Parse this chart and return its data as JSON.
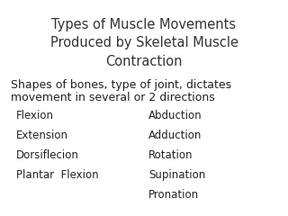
{
  "title": "Types of Muscle Movements\nProduced by Skeletal Muscle\nContraction",
  "subtitle_line1": "Shapes of bones, type of joint, dictates",
  "subtitle_line2": "movement in several or 2 directions",
  "left_column": [
    "Flexion",
    "Extension",
    "Dorsiflecion",
    "Plantar  Flexion"
  ],
  "right_column": [
    "Abduction",
    "Adduction",
    "Rotation",
    "Supination",
    "Pronation"
  ],
  "background_color": "#ffffff",
  "title_fontsize": 10.5,
  "subtitle_fontsize": 9.0,
  "item_fontsize": 8.5,
  "title_color": "#333333",
  "text_color": "#222222",
  "fig_width": 3.2,
  "fig_height": 2.4,
  "dpi": 100
}
